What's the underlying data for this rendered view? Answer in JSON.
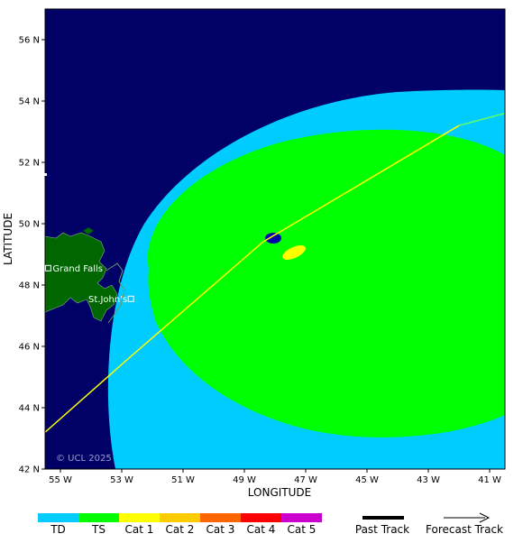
{
  "map": {
    "lon_range": [
      -55.5,
      -40.5
    ],
    "lat_range": [
      42,
      57
    ],
    "colors": {
      "ocean": "#000066",
      "land": "#006600",
      "td": "#00ccff",
      "ts": "#00ff00",
      "cat1": "#ffff00",
      "track": "#ffff00",
      "eye": "#0000aa"
    },
    "lat_ticks": [
      {
        "value": 56,
        "label": "56 N"
      },
      {
        "value": 54,
        "label": "54 N"
      },
      {
        "value": 52,
        "label": "52 N"
      },
      {
        "value": 50,
        "label": "50 N"
      },
      {
        "value": 48,
        "label": "48 N"
      },
      {
        "value": 46,
        "label": "46 N"
      },
      {
        "value": 44,
        "label": "44 N"
      },
      {
        "value": 42,
        "label": "42 N"
      }
    ],
    "lon_ticks": [
      {
        "value": -55,
        "label": "55 W"
      },
      {
        "value": -53,
        "label": "53 W"
      },
      {
        "value": -51,
        "label": "51 W"
      },
      {
        "value": -49,
        "label": "49 W"
      },
      {
        "value": -47,
        "label": "47 W"
      },
      {
        "value": -45,
        "label": "45 W"
      },
      {
        "value": -43,
        "label": "43 W"
      },
      {
        "value": -41,
        "label": "41 W"
      }
    ],
    "xlabel": "LONGITUDE",
    "ylabel": "LATITUDE",
    "copyright": "© UCL 2025",
    "cities": [
      {
        "name": "Grand Falls",
        "lon": -55.4,
        "lat": 48.55
      },
      {
        "name": "St.John's",
        "lon": -52.7,
        "lat": 47.55
      }
    ],
    "track_points": [
      {
        "lon": -55.5,
        "lat": 43.2
      },
      {
        "lon": -52.9,
        "lat": 45.5
      },
      {
        "lon": -48.4,
        "lat": 49.4
      },
      {
        "lon": -42.0,
        "lat": 53.2
      },
      {
        "lon": -40.5,
        "lat": 53.6
      }
    ]
  },
  "legend": {
    "items": [
      {
        "label": "TD",
        "color": "#00ccff"
      },
      {
        "label": "TS",
        "color": "#00ff00"
      },
      {
        "label": "Cat 1",
        "color": "#ffff00"
      },
      {
        "label": "Cat 2",
        "color": "#ffcc00"
      },
      {
        "label": "Cat 3",
        "color": "#ff6600"
      },
      {
        "label": "Cat 4",
        "color": "#ff0000"
      },
      {
        "label": "Cat 5",
        "color": "#cc00cc"
      }
    ],
    "past_track_label": "Past Track",
    "forecast_track_label": "Forecast Track"
  }
}
